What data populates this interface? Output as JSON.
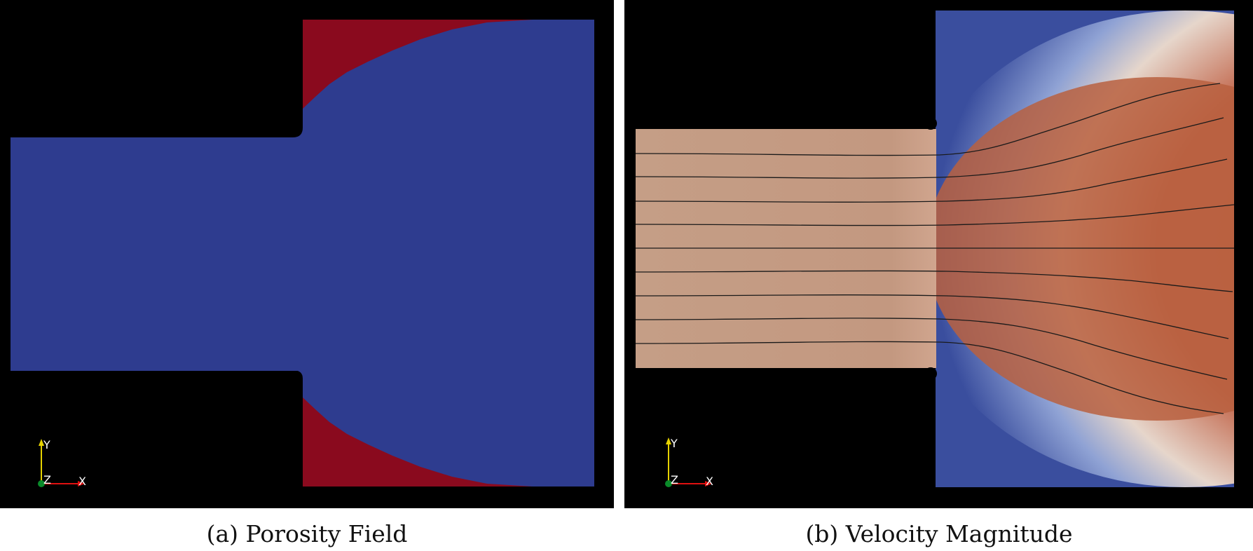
{
  "panels": [
    {
      "caption": "(a) Porosity Field",
      "axes": {
        "x": "X",
        "y": "Y",
        "z": "Z"
      },
      "colors": {
        "background": "#000000",
        "fluid": "#2e3c8f",
        "solid": "#8a0a1e"
      }
    },
    {
      "caption": "(b) Velocity Magnitude",
      "axes": {
        "x": "X",
        "y": "Y",
        "z": "Z"
      },
      "colors": {
        "background": "#000000",
        "inlet": "#c39880",
        "high": "#b7583e",
        "low": "#3a4e9e",
        "mid": "#e6d6cb",
        "streamline": "#1a1a1a"
      }
    }
  ]
}
